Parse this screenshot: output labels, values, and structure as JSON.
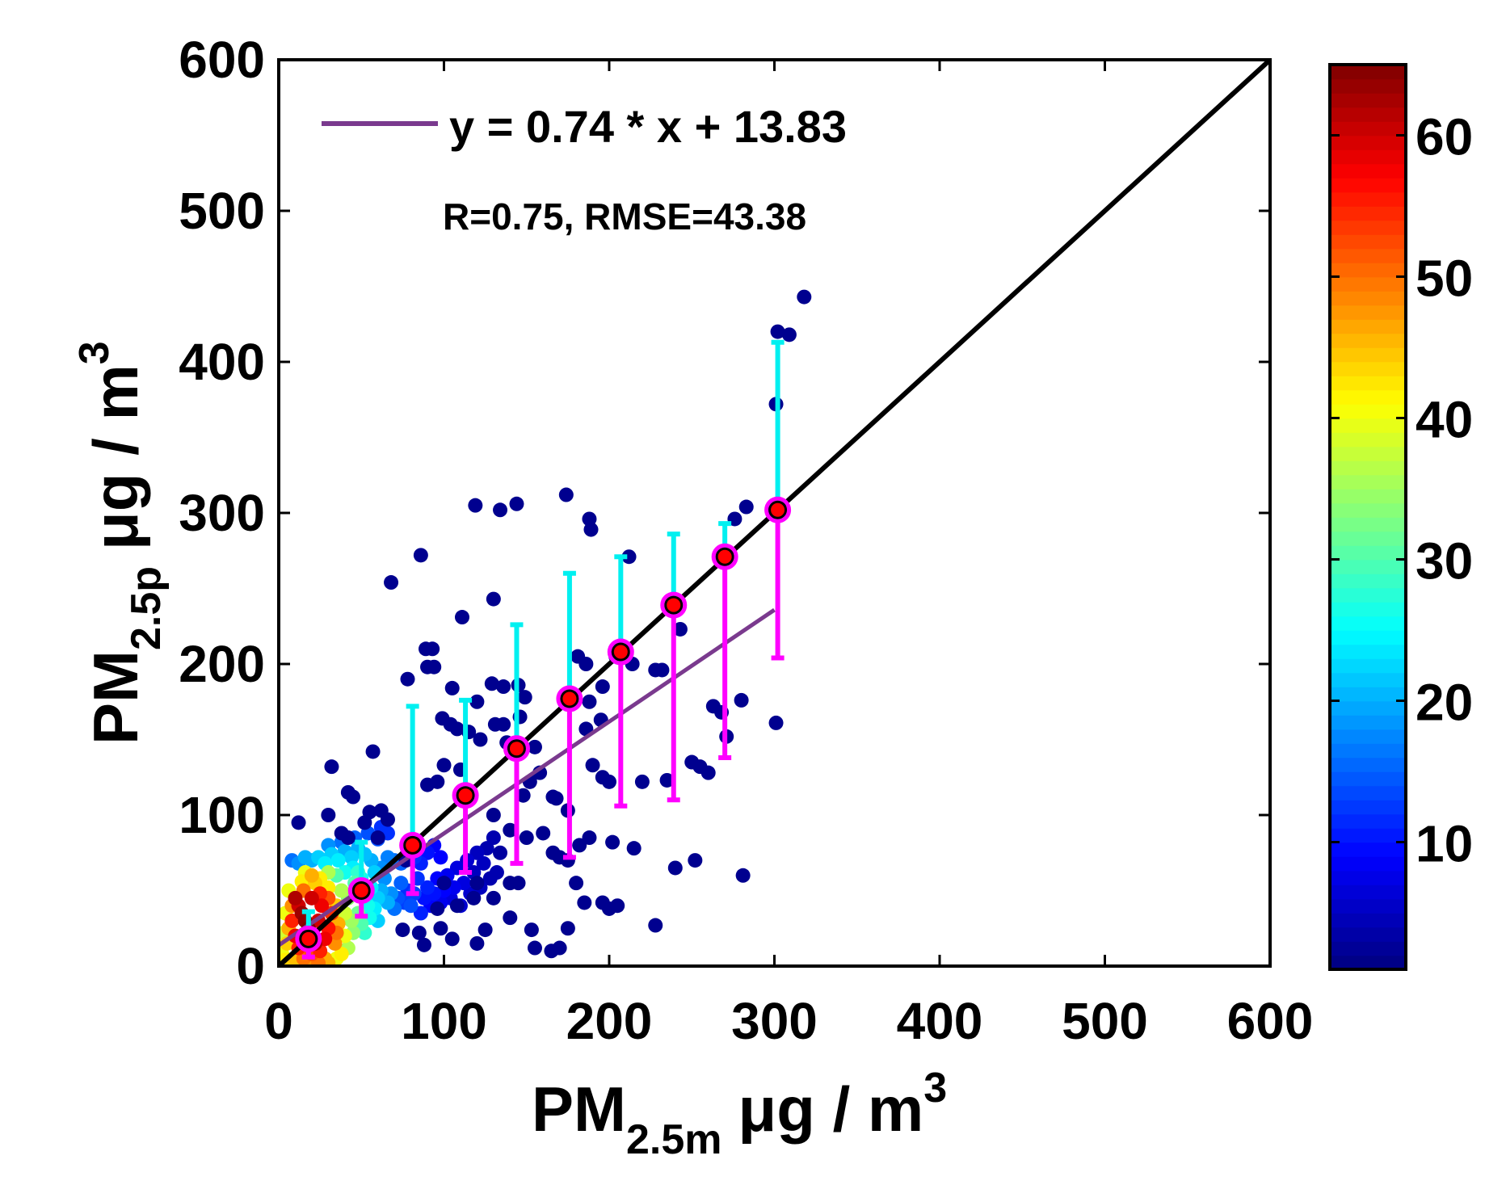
{
  "chart_data": {
    "type": "scatter",
    "title": "",
    "xlabel": {
      "main": "PM",
      "sub": "2.5m",
      "unit": "μg / m",
      "sup": "3"
    },
    "ylabel": {
      "main": "PM",
      "sub": "2.5p",
      "unit": "μg / m",
      "sup": "3"
    },
    "xlim": [
      0,
      600
    ],
    "ylim": [
      0,
      600
    ],
    "xticks": [
      0,
      100,
      200,
      300,
      400,
      500,
      600
    ],
    "yticks": [
      0,
      100,
      200,
      300,
      400,
      500,
      600
    ],
    "xtick_labels": [
      "0",
      "100",
      "200",
      "300",
      "400",
      "500",
      "600"
    ],
    "ytick_labels": [
      "0",
      "100",
      "200",
      "300",
      "400",
      "500",
      "600"
    ],
    "fit_line": {
      "slope": 0.74,
      "intercept": 13.83,
      "x_range": [
        0,
        300
      ],
      "color": "#7a3a8e",
      "legend": "y = 0.74 * x + 13.83"
    },
    "identity_line": {
      "x_range": [
        0,
        600
      ],
      "color": "#000000"
    },
    "stats_text": "R=0.75, RMSE=43.38",
    "colorbar": {
      "min": 1,
      "max": 65,
      "ticks": [
        10,
        20,
        30,
        40,
        50,
        60
      ],
      "tick_labels": [
        "10",
        "20",
        "30",
        "40",
        "50",
        "60"
      ],
      "colormap": "jet"
    },
    "binned_means": {
      "x": [
        18,
        50,
        81,
        113,
        144,
        176,
        207,
        239,
        270,
        302
      ],
      "mean": [
        18,
        50,
        80,
        113,
        144,
        177,
        208,
        239,
        271,
        302
      ],
      "upper": [
        36,
        82,
        172,
        176,
        226,
        260,
        271,
        286,
        293,
        413
      ],
      "lower": [
        6,
        33,
        48,
        62,
        68,
        72,
        106,
        110,
        138,
        204
      ],
      "upper_color": "#00f0f0",
      "lower_color": "#ff00ff",
      "marker_fill": "#ff0000",
      "marker_edge": "#ff00ff"
    },
    "outlier_points": [
      [
        318,
        443
      ],
      [
        302,
        420
      ],
      [
        309,
        418
      ],
      [
        301,
        372
      ],
      [
        174,
        312
      ],
      [
        119,
        305
      ],
      [
        134,
        302
      ],
      [
        144,
        306
      ],
      [
        188,
        296
      ],
      [
        189,
        289
      ],
      [
        283,
        304
      ],
      [
        276,
        296
      ],
      [
        300,
        301
      ],
      [
        86,
        272
      ],
      [
        212,
        271
      ],
      [
        68,
        254
      ],
      [
        130,
        243
      ],
      [
        111,
        231
      ],
      [
        89,
        210
      ],
      [
        93,
        210
      ],
      [
        90,
        198
      ],
      [
        94,
        198
      ],
      [
        78,
        190
      ],
      [
        129,
        187
      ],
      [
        105,
        184
      ],
      [
        136,
        185
      ],
      [
        145,
        186
      ],
      [
        149,
        178
      ],
      [
        120,
        175
      ],
      [
        181,
        205
      ],
      [
        186,
        200
      ],
      [
        204,
        205
      ],
      [
        214,
        200
      ],
      [
        243,
        223
      ],
      [
        228,
        196
      ],
      [
        232,
        196
      ],
      [
        196,
        185
      ],
      [
        188,
        175
      ],
      [
        280,
        176
      ],
      [
        263,
        172
      ],
      [
        268,
        168
      ],
      [
        271,
        152
      ],
      [
        301,
        161
      ],
      [
        186,
        157
      ],
      [
        195,
        163
      ],
      [
        146,
        165
      ],
      [
        131,
        160
      ],
      [
        136,
        160
      ],
      [
        99,
        164
      ],
      [
        104,
        160
      ],
      [
        108,
        157
      ],
      [
        115,
        155
      ],
      [
        122,
        150
      ],
      [
        138,
        148
      ],
      [
        155,
        145
      ],
      [
        158,
        128
      ],
      [
        152,
        122
      ],
      [
        166,
        112
      ],
      [
        168,
        111
      ],
      [
        175,
        103
      ],
      [
        148,
        113
      ],
      [
        190,
        133
      ],
      [
        196,
        125
      ],
      [
        200,
        122
      ],
      [
        220,
        122
      ],
      [
        235,
        123
      ],
      [
        250,
        135
      ],
      [
        255,
        132
      ],
      [
        260,
        128
      ],
      [
        32,
        132
      ],
      [
        57,
        142
      ],
      [
        42,
        115
      ],
      [
        45,
        112
      ],
      [
        55,
        102
      ],
      [
        62,
        103
      ],
      [
        66,
        97
      ],
      [
        90,
        120
      ],
      [
        96,
        122
      ],
      [
        100,
        133
      ],
      [
        110,
        130
      ],
      [
        112,
        113
      ],
      [
        130,
        100
      ],
      [
        140,
        90
      ],
      [
        150,
        85
      ],
      [
        160,
        88
      ],
      [
        166,
        75
      ],
      [
        170,
        72
      ],
      [
        175,
        70
      ],
      [
        182,
        80
      ],
      [
        188,
        85
      ],
      [
        202,
        82
      ],
      [
        215,
        78
      ],
      [
        180,
        55
      ],
      [
        185,
        42
      ],
      [
        196,
        42
      ],
      [
        200,
        38
      ],
      [
        205,
        40
      ],
      [
        240,
        65
      ],
      [
        252,
        70
      ],
      [
        281,
        60
      ],
      [
        228,
        27
      ],
      [
        153,
        24
      ],
      [
        155,
        12
      ],
      [
        165,
        10
      ],
      [
        170,
        12
      ],
      [
        175,
        25
      ],
      [
        120,
        15
      ],
      [
        125,
        24
      ],
      [
        105,
        18
      ],
      [
        98,
        25
      ],
      [
        85,
        22
      ],
      [
        88,
        14
      ],
      [
        12,
        95
      ],
      [
        30,
        100
      ],
      [
        38,
        88
      ],
      [
        42,
        85
      ],
      [
        52,
        95
      ],
      [
        60,
        85
      ],
      [
        77,
        70
      ],
      [
        80,
        78
      ],
      [
        140,
        55
      ],
      [
        145,
        55
      ],
      [
        140,
        32
      ],
      [
        130,
        45
      ],
      [
        120,
        55
      ],
      [
        118,
        45
      ],
      [
        108,
        40
      ],
      [
        96,
        38
      ],
      [
        75,
        24
      ],
      [
        100,
        55
      ]
    ],
    "dense_cluster": {
      "note": "Several hundred overlapping points at low concentrations, colored by point density (colorbar).",
      "points": [
        [
          10,
          45,
          62
        ],
        [
          12,
          40,
          60
        ],
        [
          14,
          35,
          63
        ],
        [
          16,
          30,
          64
        ],
        [
          18,
          25,
          65
        ],
        [
          20,
          20,
          64
        ],
        [
          22,
          15,
          62
        ],
        [
          24,
          30,
          60
        ],
        [
          26,
          40,
          58
        ],
        [
          20,
          45,
          60
        ],
        [
          8,
          30,
          55
        ],
        [
          10,
          20,
          58
        ],
        [
          12,
          12,
          55
        ],
        [
          15,
          5,
          50
        ],
        [
          20,
          8,
          52
        ],
        [
          25,
          10,
          55
        ],
        [
          28,
          18,
          58
        ],
        [
          30,
          25,
          56
        ],
        [
          32,
          35,
          54
        ],
        [
          30,
          45,
          52
        ],
        [
          25,
          48,
          55
        ],
        [
          15,
          50,
          50
        ],
        [
          8,
          40,
          48
        ],
        [
          6,
          25,
          46
        ],
        [
          5,
          15,
          44
        ],
        [
          10,
          5,
          45
        ],
        [
          18,
          4,
          48
        ],
        [
          28,
          5,
          46
        ],
        [
          34,
          15,
          48
        ],
        [
          36,
          28,
          46
        ],
        [
          35,
          40,
          44
        ],
        [
          30,
          52,
          42
        ],
        [
          22,
          55,
          44
        ],
        [
          14,
          56,
          42
        ],
        [
          6,
          50,
          40
        ],
        [
          4,
          35,
          40
        ],
        [
          3,
          22,
          38
        ],
        [
          40,
          20,
          40
        ],
        [
          40,
          35,
          38
        ],
        [
          38,
          50,
          36
        ],
        [
          42,
          45,
          34
        ],
        [
          44,
          30,
          35
        ],
        [
          46,
          55,
          30
        ],
        [
          48,
          62,
          28
        ],
        [
          50,
          58,
          26
        ],
        [
          52,
          48,
          28
        ],
        [
          54,
          40,
          26
        ],
        [
          56,
          52,
          24
        ],
        [
          58,
          62,
          22
        ],
        [
          45,
          65,
          24
        ],
        [
          40,
          62,
          26
        ],
        [
          35,
          60,
          30
        ],
        [
          60,
          45,
          22
        ],
        [
          62,
          50,
          20
        ],
        [
          64,
          58,
          18
        ],
        [
          66,
          42,
          20
        ],
        [
          68,
          48,
          18
        ],
        [
          70,
          38,
          16
        ],
        [
          72,
          45,
          14
        ],
        [
          74,
          55,
          15
        ],
        [
          76,
          42,
          13
        ],
        [
          78,
          50,
          12
        ],
        [
          80,
          40,
          14
        ],
        [
          82,
          48,
          13
        ],
        [
          84,
          58,
          12
        ],
        [
          86,
          35,
          11
        ],
        [
          88,
          45,
          10
        ],
        [
          90,
          52,
          11
        ],
        [
          92,
          40,
          9
        ],
        [
          94,
          48,
          10
        ],
        [
          96,
          58,
          9
        ],
        [
          98,
          42,
          8
        ],
        [
          100,
          50,
          9
        ],
        [
          102,
          60,
          8
        ],
        [
          104,
          45,
          7
        ],
        [
          106,
          52,
          8
        ],
        [
          108,
          65,
          7
        ],
        [
          110,
          40,
          6
        ],
        [
          112,
          55,
          7
        ],
        [
          114,
          70,
          6
        ],
        [
          116,
          48,
          6
        ],
        [
          118,
          62,
          5
        ],
        [
          120,
          75,
          5
        ],
        [
          122,
          52,
          5
        ],
        [
          124,
          68,
          5
        ],
        [
          126,
          78,
          4
        ],
        [
          128,
          58,
          4
        ],
        [
          130,
          85,
          4
        ],
        [
          132,
          62,
          4
        ],
        [
          134,
          75,
          3
        ],
        [
          62,
          65,
          18
        ],
        [
          66,
          72,
          17
        ],
        [
          70,
          70,
          16
        ],
        [
          74,
          68,
          15
        ],
        [
          78,
          75,
          13
        ],
        [
          82,
          72,
          12
        ],
        [
          86,
          68,
          11
        ],
        [
          90,
          75,
          10
        ],
        [
          94,
          80,
          9
        ],
        [
          98,
          72,
          9
        ],
        [
          56,
          70,
          20
        ],
        [
          52,
          74,
          21
        ],
        [
          48,
          78,
          20
        ],
        [
          44,
          72,
          22
        ],
        [
          40,
          76,
          20
        ],
        [
          36,
          70,
          24
        ],
        [
          32,
          74,
          22
        ],
        [
          28,
          68,
          24
        ],
        [
          24,
          72,
          22
        ],
        [
          20,
          70,
          20
        ],
        [
          16,
          72,
          20
        ],
        [
          12,
          68,
          18
        ],
        [
          8,
          70,
          16
        ],
        [
          30,
          80,
          18
        ],
        [
          38,
          82,
          16
        ],
        [
          46,
          85,
          15
        ],
        [
          54,
          88,
          14
        ],
        [
          60,
          84,
          14
        ],
        [
          62,
          92,
          12
        ],
        [
          66,
          88,
          12
        ],
        [
          30,
          62,
          36
        ],
        [
          25,
          58,
          42
        ],
        [
          20,
          60,
          46
        ],
        [
          16,
          62,
          40
        ],
        [
          35,
          22,
          50
        ],
        [
          38,
          8,
          42
        ],
        [
          42,
          12,
          36
        ],
        [
          45,
          22,
          34
        ],
        [
          48,
          35,
          32
        ],
        [
          50,
          28,
          30
        ],
        [
          52,
          22,
          28
        ],
        [
          55,
          32,
          26
        ],
        [
          58,
          38,
          24
        ],
        [
          60,
          30,
          22
        ],
        [
          35,
          5,
          40
        ],
        [
          2,
          8,
          40
        ],
        [
          4,
          4,
          42
        ],
        [
          6,
          2,
          44
        ],
        [
          24,
          2,
          50
        ],
        [
          30,
          2,
          46
        ]
      ]
    }
  }
}
